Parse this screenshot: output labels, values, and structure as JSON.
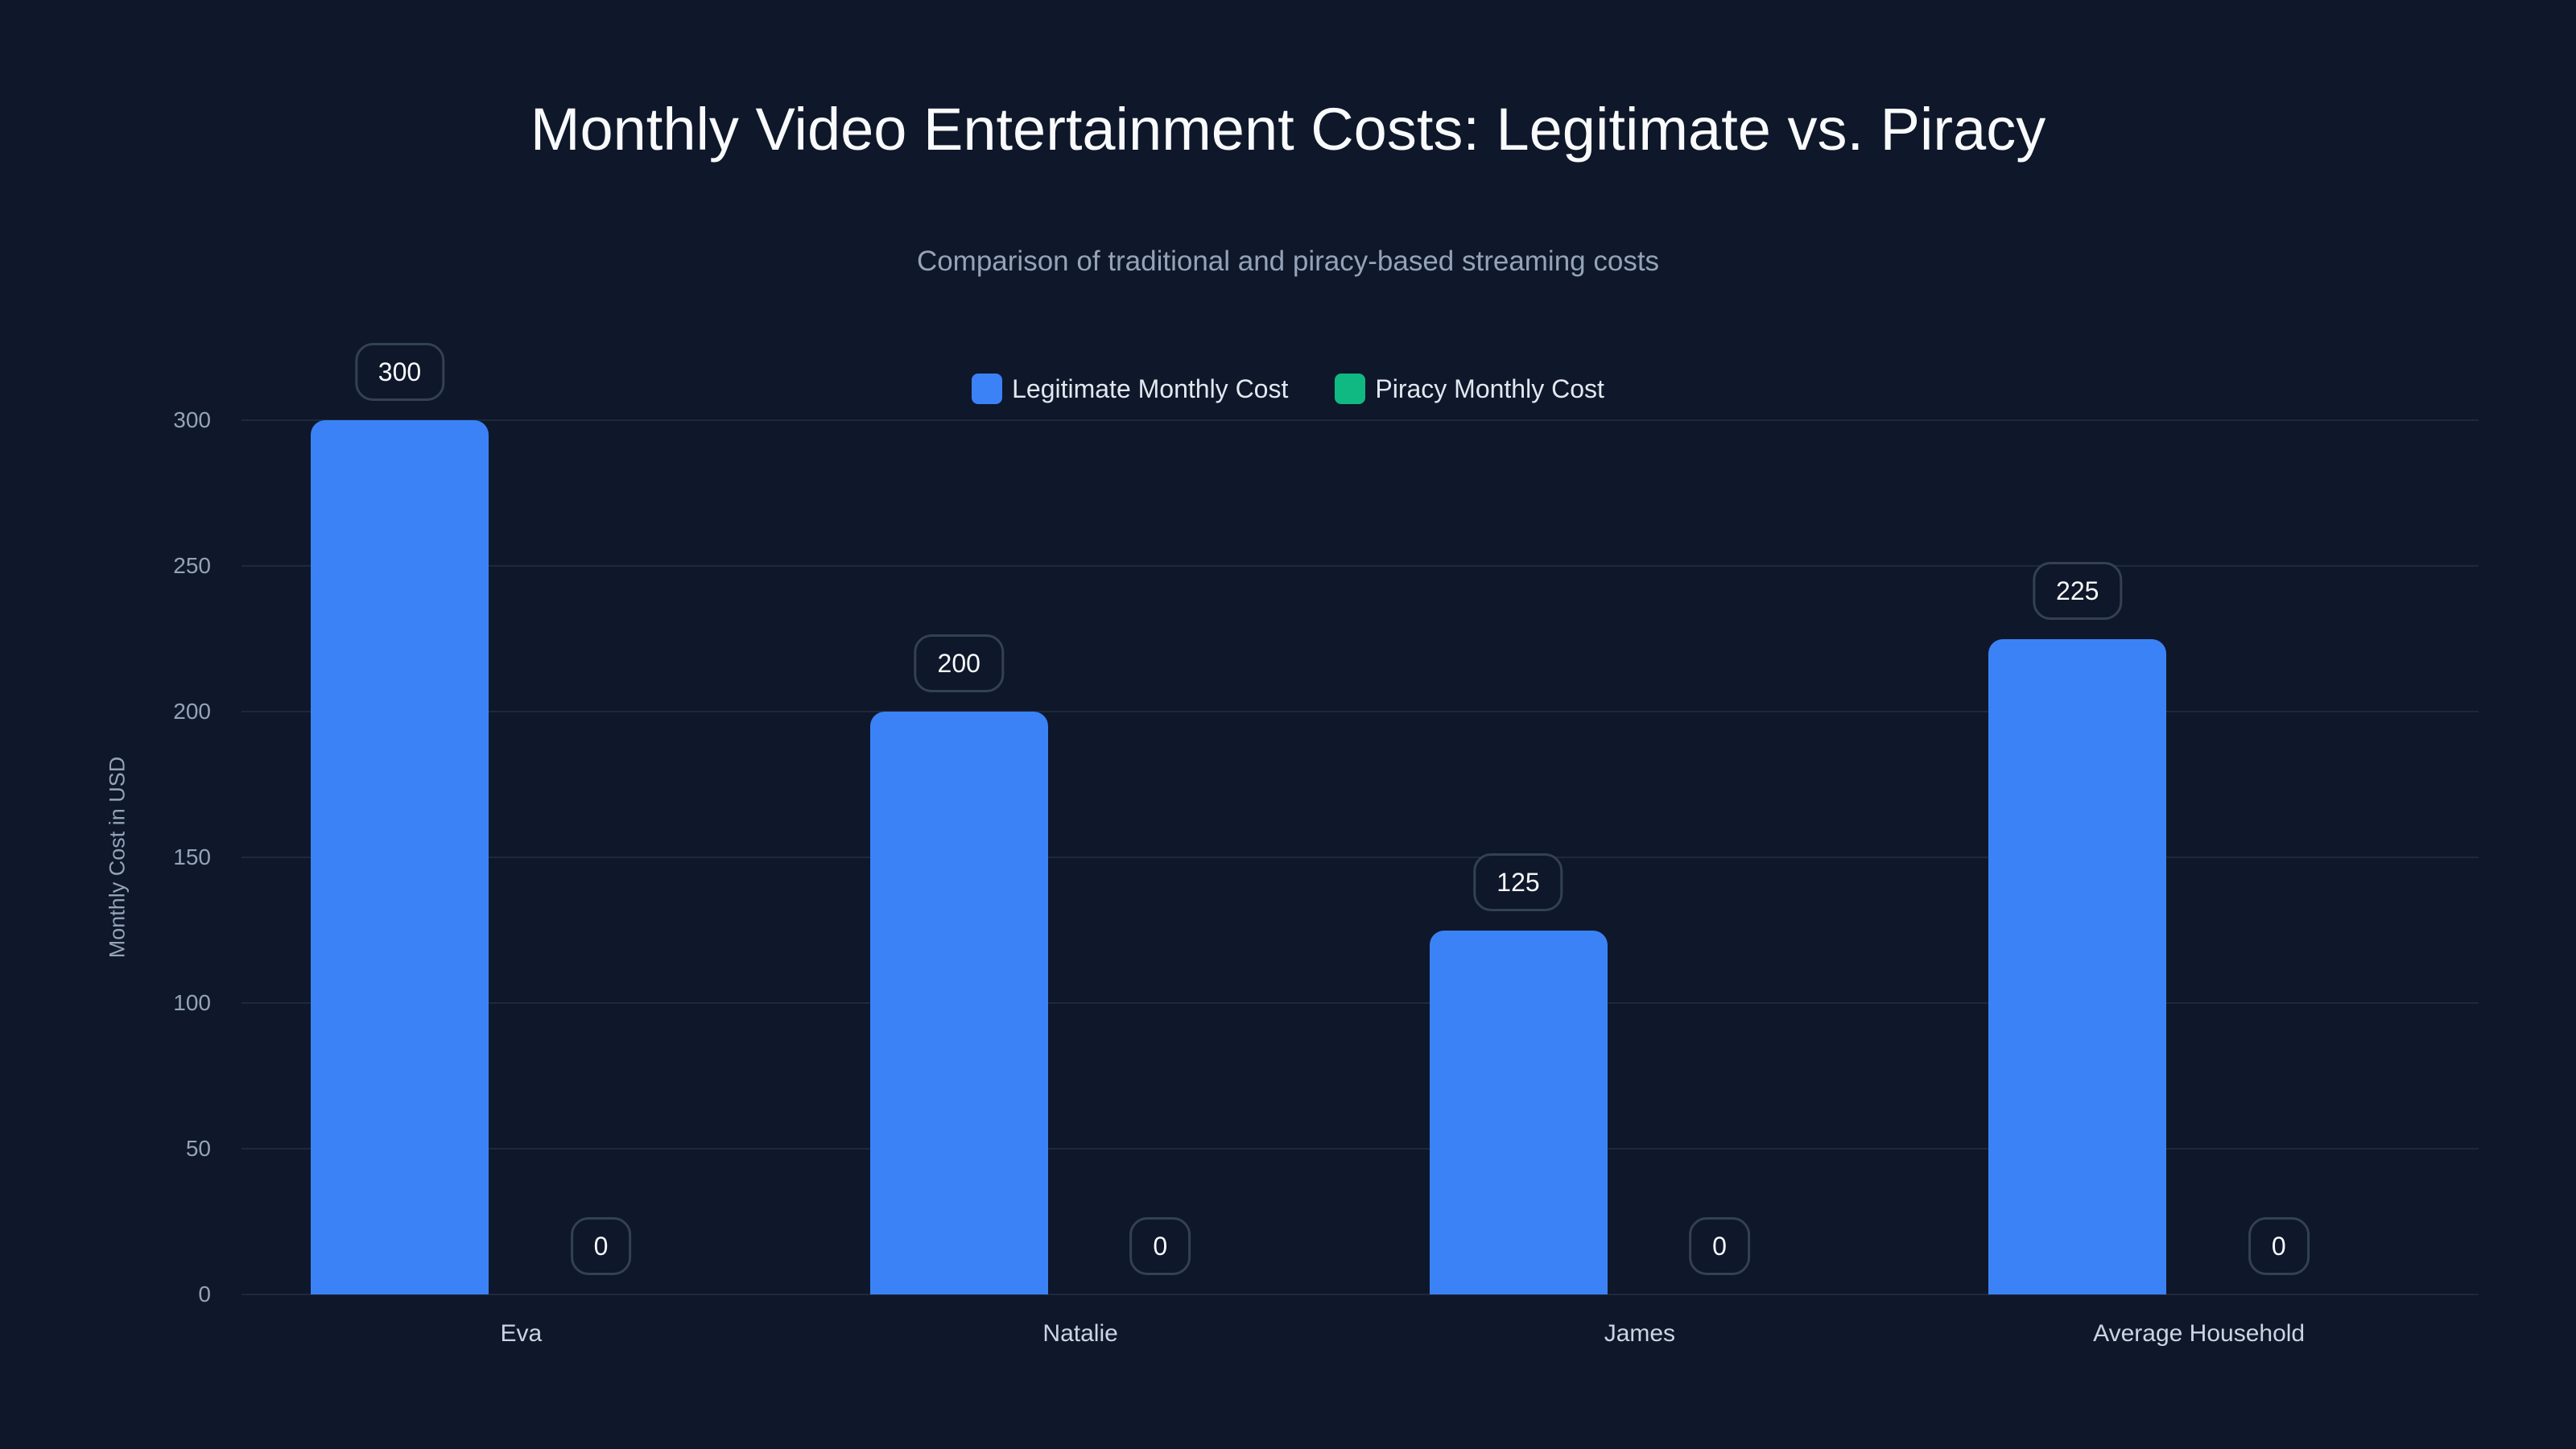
{
  "title": "Monthly Video Entertainment Costs: Legitimate vs. Piracy",
  "subtitle": "Comparison of traditional and piracy-based streaming costs",
  "colors": {
    "background": "#0f172a",
    "legitimate": "#3b82f6",
    "piracy": "#10b981",
    "grid": "#1e293b"
  },
  "legend": [
    {
      "label": "Legitimate Monthly Cost",
      "color": "#3b82f6"
    },
    {
      "label": "Piracy Monthly Cost",
      "color": "#10b981"
    }
  ],
  "yaxis": {
    "label": "Monthly Cost in USD",
    "ticks": [
      "0",
      "50",
      "100",
      "150",
      "200",
      "250",
      "300"
    ]
  },
  "chart_data": {
    "type": "bar",
    "title": "Monthly Video Entertainment Costs: Legitimate vs. Piracy",
    "subtitle": "Comparison of traditional and piracy-based streaming costs",
    "categories": [
      "Eva",
      "Natalie",
      "James",
      "Average Household"
    ],
    "series": [
      {
        "name": "Legitimate Monthly Cost",
        "values": [
          300,
          200,
          125,
          225
        ],
        "color": "#3b82f6"
      },
      {
        "name": "Piracy Monthly Cost",
        "values": [
          0,
          0,
          0,
          0
        ],
        "color": "#10b981"
      }
    ],
    "xlabel": "",
    "ylabel": "Monthly Cost in USD",
    "ylim": [
      0,
      300
    ],
    "yticks": [
      0,
      50,
      100,
      150,
      200,
      250,
      300
    ],
    "grid": true,
    "legend_position": "top-center",
    "data_labels": true
  }
}
